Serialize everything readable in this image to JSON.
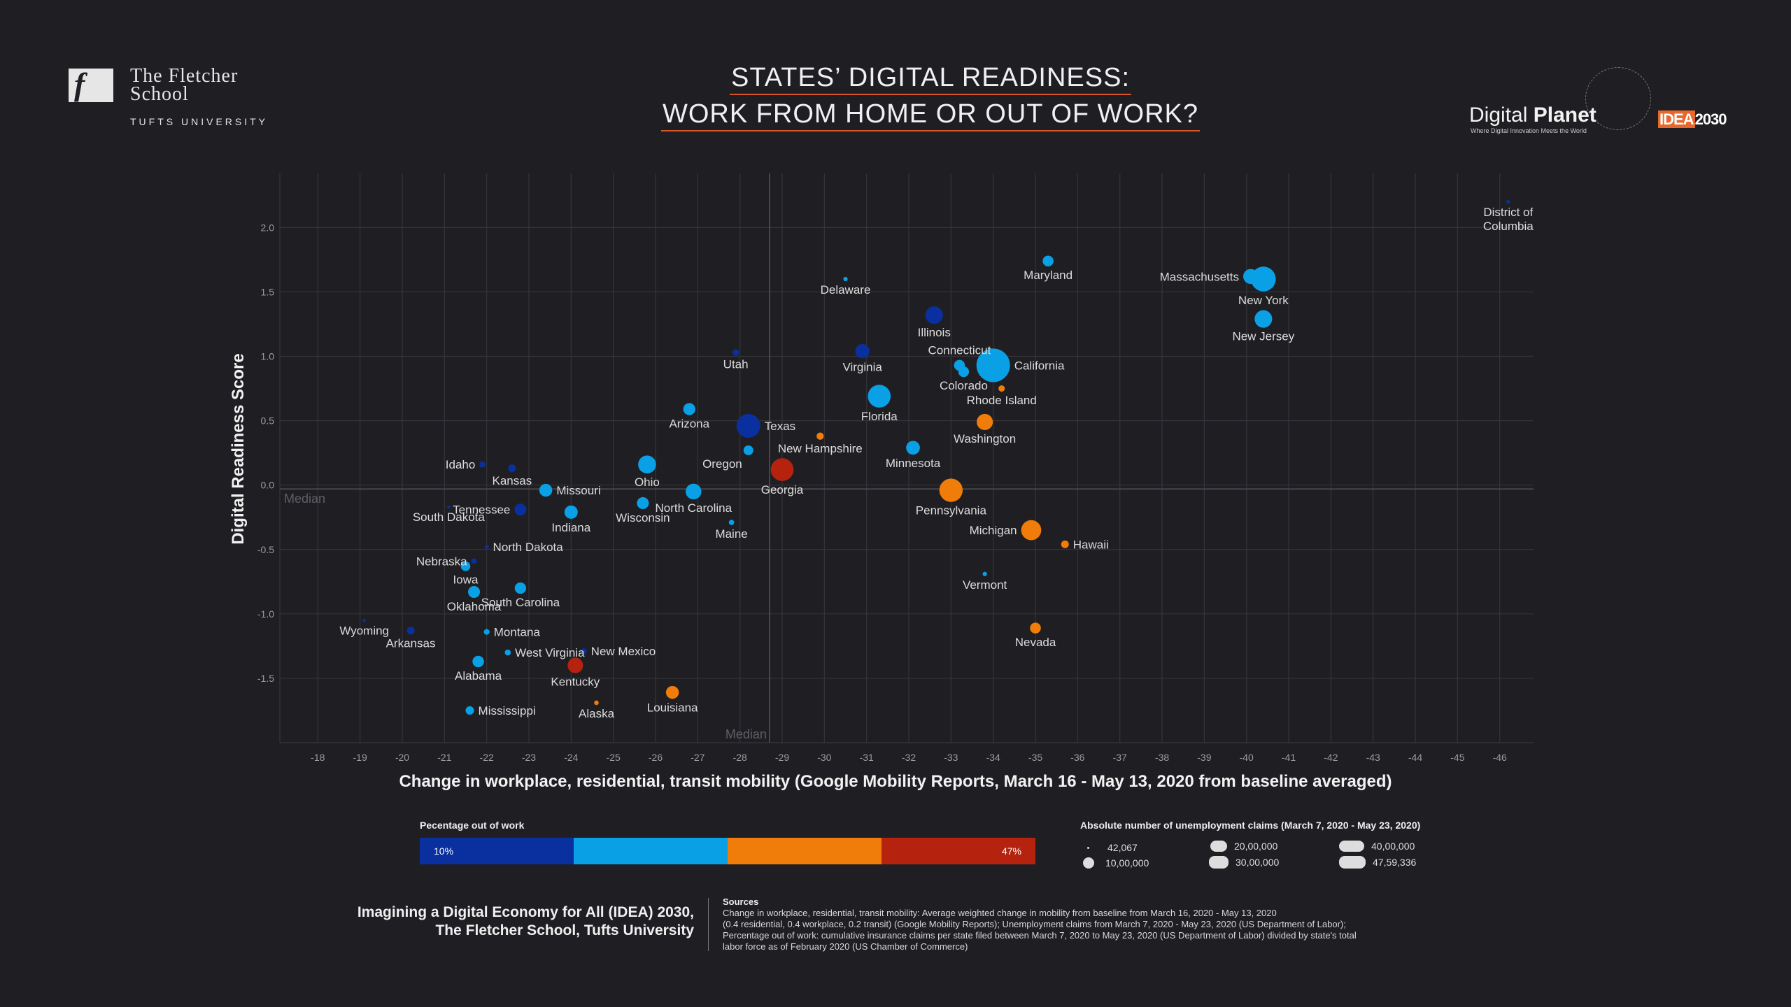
{
  "branding": {
    "school_line1": "The Fletcher",
    "school_line2": "School",
    "school_line3": "TUFTS UNIVERSITY",
    "fs_mark": "f",
    "right_logo_word1": "Digital",
    "right_logo_word2": "Planet",
    "right_logo_tagline": "Where Digital Innovation Meets the World",
    "idea_logo_a": "IDEA",
    "idea_logo_b": "2030"
  },
  "title": {
    "line1": "STATES’ DIGITAL READINESS:",
    "line2": "WORK FROM HOME OR OUT OF WORK?"
  },
  "colors": {
    "bin1": "#0a2f9e",
    "bin2": "#0aa0e6",
    "bin3": "#f07d0a",
    "bin4": "#b5230e"
  },
  "chart_data": {
    "type": "scatter",
    "xlabel": "Change in workplace, residential, transit mobility (Google Mobility Reports, March 16 - May 13, 2020 from baseline averaged)",
    "ylabel": "Digital Readiness Score",
    "xlim": [
      -17.1,
      -46.8
    ],
    "ylim": [
      -2.0,
      2.42
    ],
    "x_ticks": [
      -18,
      -19,
      -20,
      -21,
      -22,
      -23,
      -24,
      -25,
      -26,
      -27,
      -28,
      -29,
      -30,
      -31,
      -32,
      -33,
      -34,
      -35,
      -36,
      -37,
      -38,
      -39,
      -40,
      -41,
      -42,
      -43,
      -44,
      -45,
      -46
    ],
    "x_tick_labels": [
      "-18",
      "-19",
      "-20",
      "-21",
      "-22",
      "-23",
      "-24",
      "-25",
      "-26",
      "-27",
      "-28",
      "-29",
      "-30",
      "-31",
      "-32",
      "-33",
      "-34",
      "-35",
      "-36",
      "-37",
      "-38",
      "-39",
      "-40",
      "-41",
      "-42",
      "-43",
      "-44",
      "-45",
      "-46"
    ],
    "y_ticks": [
      -1.5,
      -1.0,
      -0.5,
      0.0,
      0.5,
      1.0,
      1.5,
      2.0
    ],
    "y_tick_labels": [
      "-1.5",
      "-1.0",
      "-0.5",
      "0.0",
      "0.5",
      "1.0",
      "1.5",
      "2.0"
    ],
    "median_x": -28.7,
    "median_y": -0.03,
    "median_label": "Median",
    "grid": true,
    "points": [
      {
        "state": "District of Columbia",
        "x": -46.2,
        "y": 2.2,
        "claims": 60000,
        "bin": 1,
        "label": [
          "District of",
          "Columbia"
        ],
        "pos": "below"
      },
      {
        "state": "Maryland",
        "x": -35.3,
        "y": 1.74,
        "claims": 500000,
        "bin": 2,
        "label": [
          "Maryland"
        ],
        "pos": "below"
      },
      {
        "state": "Massachusetts",
        "x": -40.1,
        "y": 1.62,
        "claims": 950000,
        "bin": 2,
        "label": [
          "Massachusetts"
        ],
        "pos": "left"
      },
      {
        "state": "New York",
        "x": -40.4,
        "y": 1.6,
        "claims": 2600000,
        "bin": 2,
        "label": [
          "New York"
        ],
        "pos": "below"
      },
      {
        "state": "New Jersey",
        "x": -40.4,
        "y": 1.29,
        "claims": 1300000,
        "bin": 2,
        "label": [
          "New Jersey"
        ],
        "pos": "below"
      },
      {
        "state": "Delaware",
        "x": -30.5,
        "y": 1.6,
        "claims": 80000,
        "bin": 2,
        "label": [
          "Delaware"
        ],
        "pos": "below"
      },
      {
        "state": "Illinois",
        "x": -32.6,
        "y": 1.32,
        "claims": 1300000,
        "bin": 1,
        "label": [
          "Illinois"
        ],
        "pos": "below"
      },
      {
        "state": "Utah",
        "x": -27.9,
        "y": 1.03,
        "claims": 180000,
        "bin": 1,
        "label": [
          "Utah"
        ],
        "pos": "below"
      },
      {
        "state": "Virginia",
        "x": -30.9,
        "y": 1.04,
        "claims": 850000,
        "bin": 1,
        "label": [
          "Virginia"
        ],
        "pos": "below"
      },
      {
        "state": "Connecticut",
        "x": -33.2,
        "y": 0.93,
        "claims": 500000,
        "bin": 2,
        "label": [
          "Connecticut"
        ],
        "pos": "above"
      },
      {
        "state": "California",
        "x": -34.0,
        "y": 0.93,
        "claims": 4759336,
        "bin": 2,
        "label": [
          "California"
        ],
        "pos": "right"
      },
      {
        "state": "Colorado",
        "x": -33.3,
        "y": 0.88,
        "claims": 480000,
        "bin": 2,
        "label": [
          "Colorado"
        ],
        "pos": "below"
      },
      {
        "state": "Rhode Island",
        "x": -34.2,
        "y": 0.75,
        "claims": 170000,
        "bin": 3,
        "label": [
          "Rhode Island"
        ],
        "pos": "below"
      },
      {
        "state": "Florida",
        "x": -31.3,
        "y": 0.69,
        "claims": 2200000,
        "bin": 2,
        "label": [
          "Florida"
        ],
        "pos": "below"
      },
      {
        "state": "Washington",
        "x": -33.8,
        "y": 0.49,
        "claims": 1100000,
        "bin": 3,
        "label": [
          "Washington"
        ],
        "pos": "below"
      },
      {
        "state": "Arizona",
        "x": -26.8,
        "y": 0.59,
        "claims": 620000,
        "bin": 2,
        "label": [
          "Arizona"
        ],
        "pos": "below"
      },
      {
        "state": "Texas",
        "x": -28.2,
        "y": 0.46,
        "claims": 2400000,
        "bin": 1,
        "label": [
          "Texas"
        ],
        "pos": "right"
      },
      {
        "state": "New Hampshire",
        "x": -29.9,
        "y": 0.38,
        "claims": 220000,
        "bin": 3,
        "label": [
          "New Hampshire"
        ],
        "pos": "below"
      },
      {
        "state": "Oregon",
        "x": -28.2,
        "y": 0.27,
        "claims": 400000,
        "bin": 2,
        "label": [
          "Oregon"
        ],
        "pos": "belowleft"
      },
      {
        "state": "Minnesota",
        "x": -32.1,
        "y": 0.29,
        "claims": 800000,
        "bin": 2,
        "label": [
          "Minnesota"
        ],
        "pos": "below"
      },
      {
        "state": "Georgia",
        "x": -29.0,
        "y": 0.12,
        "claims": 2200000,
        "bin": 4,
        "label": [
          "Georgia"
        ],
        "pos": "below"
      },
      {
        "state": "Ohio",
        "x": -25.8,
        "y": 0.16,
        "claims": 1350000,
        "bin": 2,
        "label": [
          "Ohio"
        ],
        "pos": "below"
      },
      {
        "state": "Idaho",
        "x": -21.9,
        "y": 0.16,
        "claims": 150000,
        "bin": 1,
        "label": [
          "Idaho"
        ],
        "pos": "left"
      },
      {
        "state": "Kansas",
        "x": -22.6,
        "y": 0.13,
        "claims": 250000,
        "bin": 1,
        "label": [
          "Kansas"
        ],
        "pos": "below"
      },
      {
        "state": "Missouri",
        "x": -23.4,
        "y": -0.04,
        "claims": 700000,
        "bin": 2,
        "label": [
          "Missouri"
        ],
        "pos": "right"
      },
      {
        "state": "Pennsylvania",
        "x": -33.0,
        "y": -0.04,
        "claims": 2300000,
        "bin": 3,
        "label": [
          "Pennsylvania"
        ],
        "pos": "below"
      },
      {
        "state": "North Carolina",
        "x": -26.9,
        "y": -0.05,
        "claims": 1050000,
        "bin": 2,
        "label": [
          "North Carolina"
        ],
        "pos": "below"
      },
      {
        "state": "Wisconsin",
        "x": -25.7,
        "y": -0.14,
        "claims": 600000,
        "bin": 2,
        "label": [
          "Wisconsin"
        ],
        "pos": "below"
      },
      {
        "state": "Tennessee",
        "x": -22.8,
        "y": -0.19,
        "claims": 600000,
        "bin": 1,
        "label": [
          "Tennessee"
        ],
        "pos": "left"
      },
      {
        "state": "Indiana",
        "x": -24.0,
        "y": -0.21,
        "claims": 750000,
        "bin": 2,
        "label": [
          "Indiana"
        ],
        "pos": "below"
      },
      {
        "state": "South Dakota",
        "x": -21.1,
        "y": -0.17,
        "claims": 40000,
        "bin": 1,
        "label": [
          "South Dakota"
        ],
        "pos": "below"
      },
      {
        "state": "Maine",
        "x": -27.8,
        "y": -0.29,
        "claims": 120000,
        "bin": 2,
        "label": [
          "Maine"
        ],
        "pos": "below"
      },
      {
        "state": "Michigan",
        "x": -34.9,
        "y": -0.35,
        "claims": 1700000,
        "bin": 3,
        "label": [
          "Michigan"
        ],
        "pos": "left"
      },
      {
        "state": "Hawaii",
        "x": -35.7,
        "y": -0.46,
        "claims": 250000,
        "bin": 3,
        "label": [
          "Hawaii"
        ],
        "pos": "right"
      },
      {
        "state": "North Dakota",
        "x": -22.0,
        "y": -0.48,
        "claims": 70000,
        "bin": 1,
        "label": [
          "North Dakota"
        ],
        "pos": "right"
      },
      {
        "state": "Nebraska",
        "x": -21.7,
        "y": -0.59,
        "claims": 130000,
        "bin": 1,
        "label": [
          "Nebraska"
        ],
        "pos": "left"
      },
      {
        "state": "Iowa",
        "x": -21.5,
        "y": -0.63,
        "claims": 380000,
        "bin": 2,
        "label": [
          "Iowa"
        ],
        "pos": "below"
      },
      {
        "state": "Vermont",
        "x": -33.8,
        "y": -0.69,
        "claims": 80000,
        "bin": 2,
        "label": [
          "Vermont"
        ],
        "pos": "below"
      },
      {
        "state": "South Carolina",
        "x": -22.8,
        "y": -0.8,
        "claims": 550000,
        "bin": 2,
        "label": [
          "South Carolina"
        ],
        "pos": "below"
      },
      {
        "state": "Oklahoma",
        "x": -21.7,
        "y": -0.83,
        "claims": 600000,
        "bin": 2,
        "label": [
          "Oklahoma"
        ],
        "pos": "below"
      },
      {
        "state": "Wyoming",
        "x": -19.1,
        "y": -1.05,
        "claims": 42067,
        "bin": 1,
        "label": [
          "Wyoming"
        ],
        "pos": "below"
      },
      {
        "state": "Arkansas",
        "x": -20.2,
        "y": -1.13,
        "claims": 250000,
        "bin": 1,
        "label": [
          "Arkansas"
        ],
        "pos": "below"
      },
      {
        "state": "Montana",
        "x": -22.0,
        "y": -1.14,
        "claims": 140000,
        "bin": 2,
        "label": [
          "Montana"
        ],
        "pos": "right"
      },
      {
        "state": "Nevada",
        "x": -35.0,
        "y": -1.11,
        "claims": 500000,
        "bin": 3,
        "label": [
          "Nevada"
        ],
        "pos": "below"
      },
      {
        "state": "West Virginia",
        "x": -22.5,
        "y": -1.3,
        "claims": 150000,
        "bin": 2,
        "label": [
          "West Virginia"
        ],
        "pos": "right"
      },
      {
        "state": "New Mexico",
        "x": -24.3,
        "y": -1.29,
        "claims": 150000,
        "bin": 1,
        "label": [
          "New Mexico"
        ],
        "pos": "right"
      },
      {
        "state": "Alabama",
        "x": -21.8,
        "y": -1.37,
        "claims": 560000,
        "bin": 2,
        "label": [
          "Alabama"
        ],
        "pos": "below"
      },
      {
        "state": "Kentucky",
        "x": -24.1,
        "y": -1.4,
        "claims": 1000000,
        "bin": 4,
        "label": [
          "Kentucky"
        ],
        "pos": "below"
      },
      {
        "state": "Louisiana",
        "x": -26.4,
        "y": -1.61,
        "claims": 700000,
        "bin": 3,
        "label": [
          "Louisiana"
        ],
        "pos": "below"
      },
      {
        "state": "Alaska",
        "x": -24.6,
        "y": -1.69,
        "claims": 90000,
        "bin": 3,
        "label": [
          "Alaska"
        ],
        "pos": "below"
      },
      {
        "state": "Mississippi",
        "x": -21.6,
        "y": -1.75,
        "claims": 300000,
        "bin": 2,
        "label": [
          "Mississippi"
        ],
        "pos": "right"
      }
    ]
  },
  "legend": {
    "percentage_title": "Pecentage out of work",
    "percentage_low": "10%",
    "percentage_high": "47%",
    "size_title": "Absolute number of unemployment claims (March 7, 2020 - May 23, 2020)",
    "size_items": [
      {
        "label": "42,067",
        "value": 42067
      },
      {
        "label": "10,00,000",
        "value": 1000000
      },
      {
        "label": "20,00,000",
        "value": 2000000
      },
      {
        "label": "30,00,000",
        "value": 3000000
      },
      {
        "label": "40,00,000",
        "value": 4000000
      },
      {
        "label": "47,59,336",
        "value": 4759336
      }
    ]
  },
  "footer": {
    "credit_line1": "Imagining a Digital Economy for All (IDEA) 2030,",
    "credit_line2": "The Fletcher School, Tufts University",
    "sources_title": "Sources",
    "sources_line1": "Change in workplace, residential, transit mobility: Average weighted change in mobility from baseline from March 16, 2020 - May 13, 2020",
    "sources_line2": "(0.4 residential, 0.4 workplace, 0.2 transit) (Google Mobility Reports); Unemployment claims from March 7, 2020 - May 23, 2020 (US Department of Labor);",
    "sources_line3": "Percentage out of work: cumulative insurance claims per state filed between March 7, 2020 to May 23, 2020 (US Department of Labor) divided by state's total",
    "sources_line4": "labor force as of February 2020 (US Chamber of Commerce)"
  }
}
